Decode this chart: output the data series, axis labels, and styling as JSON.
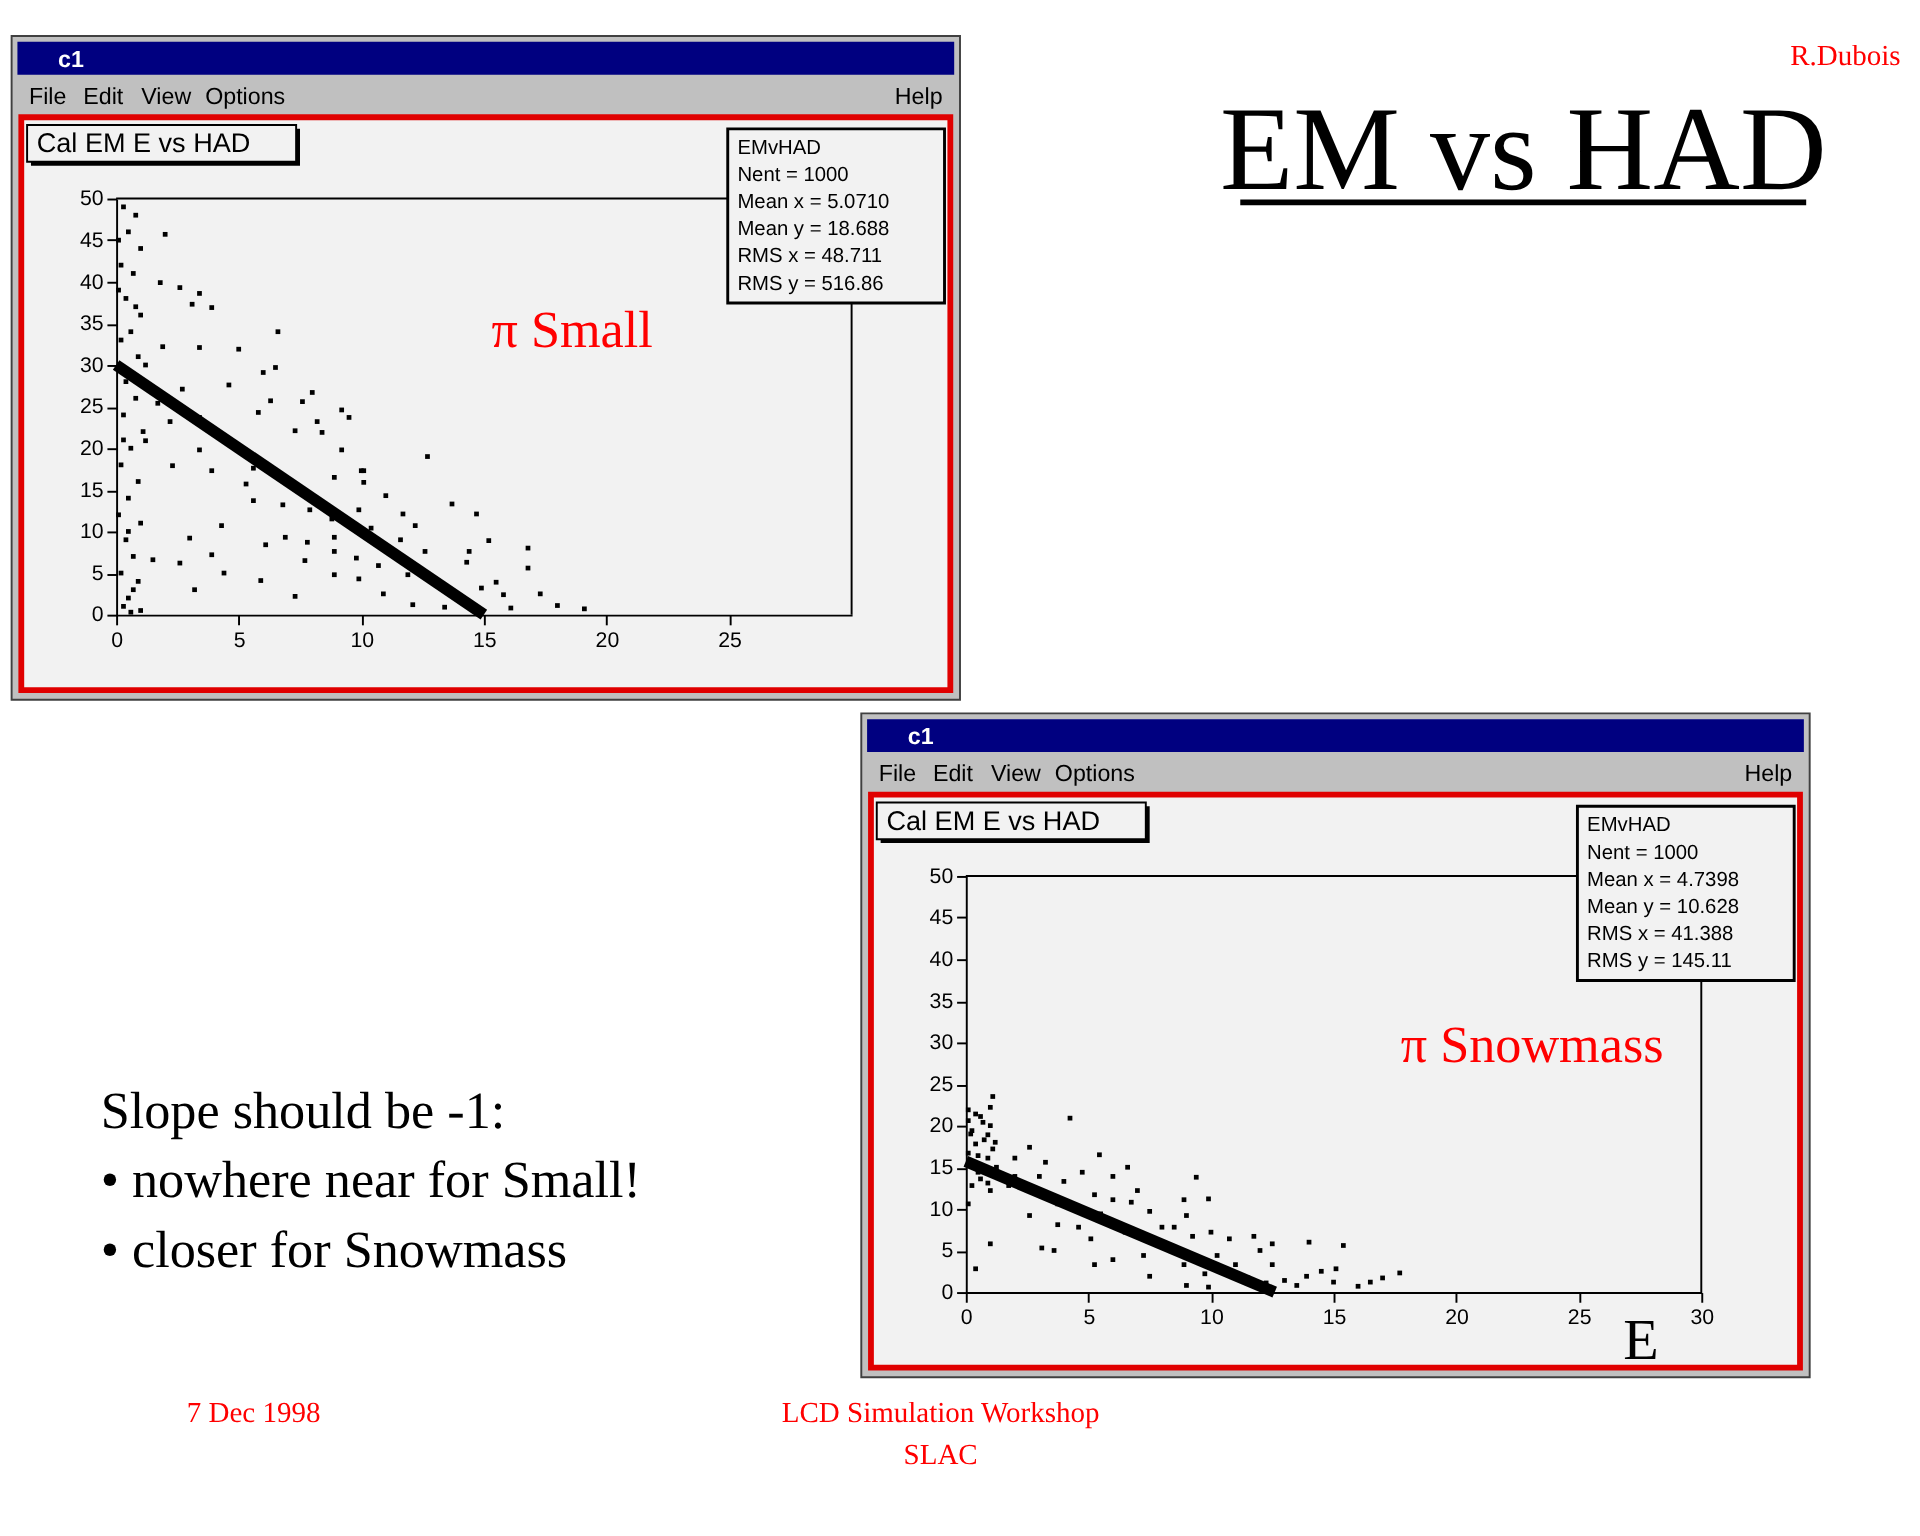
{
  "chart_data": [
    {
      "type": "scatter",
      "title": "Cal EM E vs HAD",
      "annotations": [
        "c1",
        "File",
        "Edit",
        "View",
        "Options",
        "Help",
        "EMvHAD",
        "Nent = 1000",
        "Mean x = 5.0710",
        "Mean y = 18.688",
        "RMS x = 48.711",
        "RMS y = 516.86",
        "π Small"
      ],
      "xlim": [
        0,
        30
      ],
      "ylim": [
        0,
        50
      ],
      "xticks": [
        0,
        5,
        10,
        15,
        20,
        25
      ],
      "yticks": [
        0,
        5,
        10,
        15,
        20,
        25,
        30,
        35,
        40,
        45,
        50
      ],
      "series": [
        {
          "color": "#000000",
          "marker": "square",
          "x": [
            0.3,
            0.8,
            0.5,
            1.0,
            0.2,
            0.7,
            0.4,
            1.0,
            0.6,
            0.2,
            0.9,
            0.4,
            0.8,
            0.3,
            1.1,
            0.6,
            0.2,
            0.9,
            0.5,
            0.1,
            1.0,
            0.4,
            0.7,
            0.2,
            0.9,
            0.5,
            0.3,
            1.0,
            0.6,
            0.1,
            1.2,
            0.5,
            0.1,
            0.8,
            0.3,
            0.7,
            2.0,
            1.8,
            2.6,
            3.4,
            3.9,
            3.1,
            6.6,
            1.9,
            5.0,
            3.4,
            6.0,
            6.5,
            8.0,
            7.6,
            6.3,
            9.5,
            8.4,
            9.2,
            10.0,
            10.1,
            12.7,
            13.7,
            14.7,
            15.2,
            16.8,
            16.8,
            15.5,
            15.8,
            17.3,
            18.0,
            19.1,
            16.1,
            14.4,
            14.3,
            11.9,
            10.9,
            12.1,
            13.4,
            7.3,
            5.9,
            4.4,
            3.2,
            2.6,
            1.5,
            3.9,
            3.0,
            4.3,
            6.1,
            6.9,
            7.8,
            8.9,
            9.8,
            10.7,
            11.6,
            12.6,
            9.9,
            8.8,
            7.9,
            6.8,
            5.6,
            5.3,
            3.9,
            2.3,
            3.4,
            3.4,
            2.2,
            1.2,
            5.6,
            8.9,
            10.1,
            11.0,
            11.7,
            12.2,
            10.4,
            8.9,
            7.7,
            8.9,
            9.9,
            14.9,
            7.3,
            8.2,
            9.2,
            4.6,
            2.7,
            1.7,
            5.8
          ],
          "values": [
            49,
            48,
            46,
            44,
            42,
            41,
            38,
            36,
            34,
            33,
            31,
            28,
            26,
            24,
            22,
            20,
            18,
            16,
            14,
            12,
            11,
            9,
            7,
            5,
            4,
            2,
            1,
            0.5,
            0.3,
            39,
            30,
            10,
            45,
            37,
            21,
            3,
            45.7,
            39.9,
            39.3,
            38.6,
            36.9,
            37.3,
            34,
            32.2,
            31.9,
            32.1,
            29.1,
            29.7,
            26.7,
            25.6,
            25.7,
            23.7,
            21.9,
            19.8,
            17.3,
            15.9,
            19.0,
            13.3,
            12.1,
            8.9,
            8.0,
            5.6,
            3.9,
            2.4,
            2.5,
            1.1,
            0.7,
            0.8,
            7.6,
            6.3,
            4.8,
            2.5,
            1.2,
            0.9,
            2.2,
            4.1,
            5.0,
            3.0,
            6.2,
            6.6,
            7.2,
            9.2,
            10.7,
            8.4,
            9.3,
            8.7,
            7.6,
            6.8,
            5.9,
            9.0,
            7.6,
            12.6,
            11.5,
            12.6,
            13.2,
            13.7,
            15.7,
            17.3,
            17.9,
            19.8,
            23.7,
            23.2,
            20.9,
            17.6,
            16.5,
            17.3,
            14.3,
            12.1,
            10.7,
            10.4,
            9.3,
            6.5,
            4.8,
            4.3,
            3.2,
            22.1,
            23.2,
            24.6,
            27.6,
            27.1,
            25.4,
            24.3
          ]
        },
        {
          "type": "line",
          "color": "#000000",
          "x": [
            0,
            15
          ],
          "values": [
            30,
            0
          ]
        }
      ]
    },
    {
      "type": "other",
      "title": "EM vs HAD",
      "annotations": [
        "R.Dubois"
      ]
    },
    {
      "type": "other",
      "annotations": [
        "Slope should be -1:",
        "• nowhere near for Small!",
        "• closer for Snowmass"
      ]
    },
    {
      "type": "scatter",
      "title": "Cal EM E vs HAD",
      "xlabel": "E",
      "annotations": [
        "c1",
        "File",
        "Edit",
        "View",
        "Options",
        "Help",
        "EMvHAD",
        "Nent = 1000",
        "Mean x = 4.7398",
        "Mean y = 10.628",
        "RMS x = 41.388",
        "RMS y = 145.11",
        "π Snowmass"
      ],
      "xlim": [
        0,
        30
      ],
      "ylim": [
        0,
        50
      ],
      "xticks": [
        0,
        5,
        10,
        15,
        20,
        25,
        30
      ],
      "yticks": [
        0,
        5,
        10,
        15,
        20,
        25,
        30,
        35,
        40,
        45,
        50
      ],
      "series": [
        {
          "color": "#000000",
          "marker": "square",
          "x": [
            1.1,
            0.1,
            0.6,
            1.0,
            0.25,
            0.75,
            0.4,
            1.1,
            0.1,
            0.9,
            0.5,
            0.25,
            1.0,
            0.6,
            0.1,
            1.0,
            0.9,
            0.1,
            0.4,
            1.0,
            0.2,
            0.7,
            1.2,
            0.5,
            0.9,
            0.4,
            4.25,
            5.45,
            6.6,
            9.4,
            9.9,
            8.9,
            6.0,
            4.75,
            2.6,
            2.0,
            3.25,
            4.0,
            2.0,
            2.6,
            3.1,
            3.6,
            3.75,
            5.1,
            5.25,
            6.0,
            6.5,
            7.25,
            7.5,
            8.0,
            8.9,
            9.0,
            9.75,
            9.0,
            10.0,
            10.75,
            11.75,
            12.0,
            11.0,
            11.5,
            12.5,
            12.5,
            13.0,
            13.5,
            14.0,
            14.5,
            15.0,
            15.4,
            15.1,
            16.0,
            16.5,
            17.0,
            17.7,
            13.9,
            6.75,
            7.5,
            7.0,
            6.0,
            5.25,
            3.0,
            1.75,
            1.25,
            8.5,
            9.25,
            5.5,
            3.75,
            4.6,
            10.25,
            12.25,
            9.9
          ],
          "values": [
            23.5,
            21.9,
            21.1,
            20,
            19.4,
            18.3,
            17.8,
            17.2,
            16.7,
            16.1,
            14.4,
            12.8,
            12.2,
            13.6,
            20.6,
            22.2,
            18.9,
            10.6,
            2.8,
            5.8,
            19.0,
            20.4,
            18.0,
            16.4,
            13.1,
            21.4,
            20.9,
            16.5,
            15,
            13.8,
            11.2,
            11.1,
            13.9,
            14.4,
            17.4,
            16.1,
            15.6,
            13.3,
            13.9,
            9.2,
            5.3,
            5.0,
            8.1,
            6.4,
            3.3,
            3.9,
            7.2,
            4.4,
            1.9,
            7.8,
            3.3,
            0.8,
            2.2,
            9.2,
            7.2,
            6.4,
            6.7,
            5.0,
            3.3,
            1.7,
            5.8,
            3.3,
            1.4,
            0.8,
            6.0,
            2.5,
            1.2,
            5.6,
            2.8,
            0.7,
            1.2,
            1.7,
            2.3,
            1.9,
            10.8,
            9.7,
            12.2,
            11.1,
            11.7,
            13.9,
            12.8,
            15,
            7.8,
            6.7,
            9.4,
            10.6,
            7.8,
            4.4,
            1.1,
            0.6
          ]
        },
        {
          "type": "line",
          "color": "#000000",
          "x": [
            0,
            12.6
          ],
          "values": [
            15.7,
            0
          ]
        }
      ]
    },
    {
      "type": "other",
      "annotations": [
        "7 Dec 1998",
        "LCD Simulation Workshop",
        "SLAC"
      ]
    }
  ]
}
